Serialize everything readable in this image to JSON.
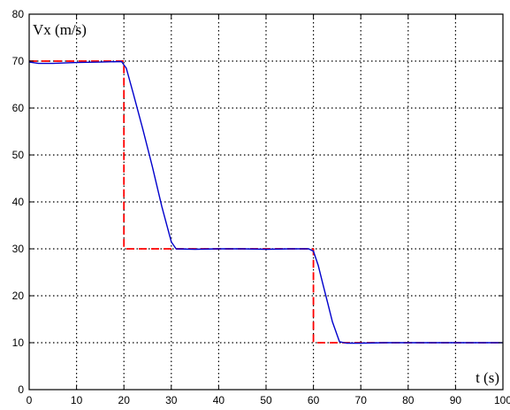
{
  "chart_data": {
    "type": "line",
    "xlabel": "t (s)",
    "ylabel": "Vx (m/s)",
    "xlim": [
      0,
      100
    ],
    "ylim": [
      0,
      80
    ],
    "x_ticks": [
      "0",
      "10",
      "20",
      "30",
      "40",
      "50",
      "60",
      "70",
      "80",
      "90",
      "100"
    ],
    "y_ticks": [
      "0",
      "10",
      "20",
      "30",
      "40",
      "50",
      "60",
      "70",
      "80"
    ],
    "grid": true,
    "series": [
      {
        "color": "#ff0000",
        "style": "dashed",
        "x": [
          0,
          20,
          20,
          60,
          60,
          100
        ],
        "y": [
          70,
          70,
          30,
          30,
          10,
          10
        ]
      },
      {
        "color": "#0000cc",
        "style": "solid",
        "x": [
          0,
          2,
          5,
          10,
          15,
          19.5,
          20.5,
          22,
          24,
          26,
          28,
          30,
          31,
          35,
          40,
          45,
          50,
          55,
          59,
          60,
          61,
          62,
          63,
          64,
          65.5,
          67,
          70,
          75,
          80,
          90,
          100
        ],
        "y": [
          69.8,
          69.5,
          69.5,
          69.7,
          69.8,
          69.9,
          68.5,
          63,
          55.5,
          47.5,
          39,
          31.5,
          30,
          29.9,
          30,
          30,
          29.9,
          30,
          30,
          29.5,
          26.5,
          22.5,
          18.5,
          14.5,
          10.2,
          9.9,
          9.9,
          10,
          10,
          10,
          10
        ]
      }
    ]
  }
}
